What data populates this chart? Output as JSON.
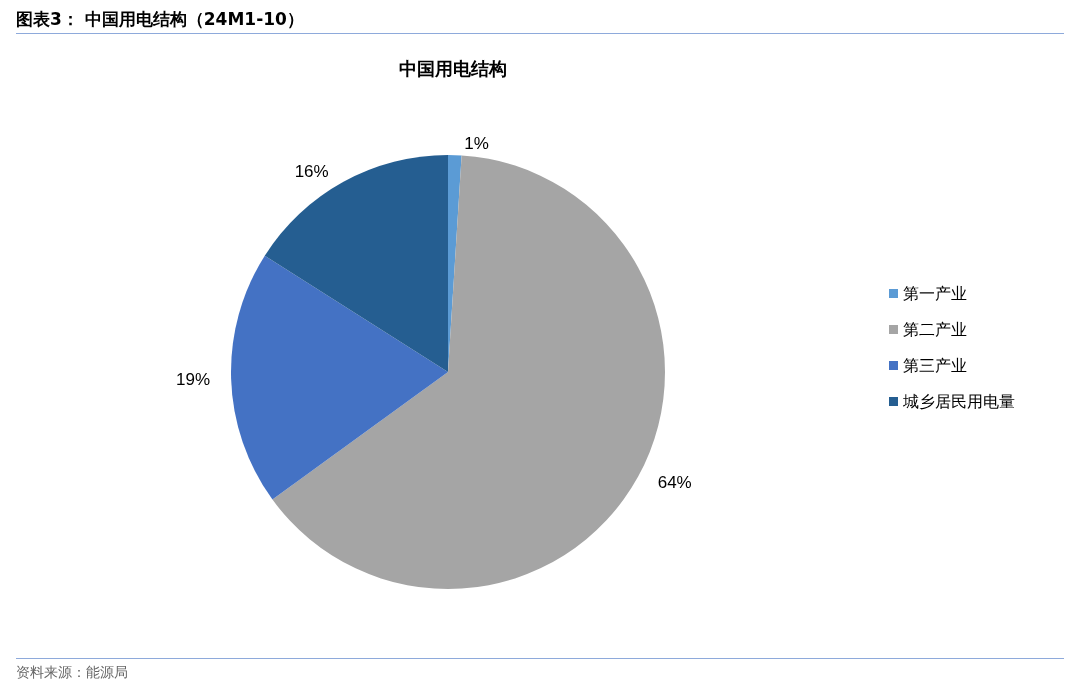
{
  "chart_data": {
    "type": "pie",
    "subtitle": "图表3： 中国用电结构（24M1-10）",
    "title": "中国用电结构",
    "categories": [
      "第一产业",
      "第二产业",
      "第三产业",
      "城乡居民用电量"
    ],
    "values": [
      1,
      64,
      19,
      16
    ],
    "colors": [
      "#5b9bd5",
      "#a5a5a5",
      "#4472c4",
      "#255e91"
    ],
    "value_labels": [
      "1%",
      "64%",
      "19%",
      "16%"
    ],
    "legend": "right",
    "annotations": [
      "资料来源：能源局"
    ]
  }
}
